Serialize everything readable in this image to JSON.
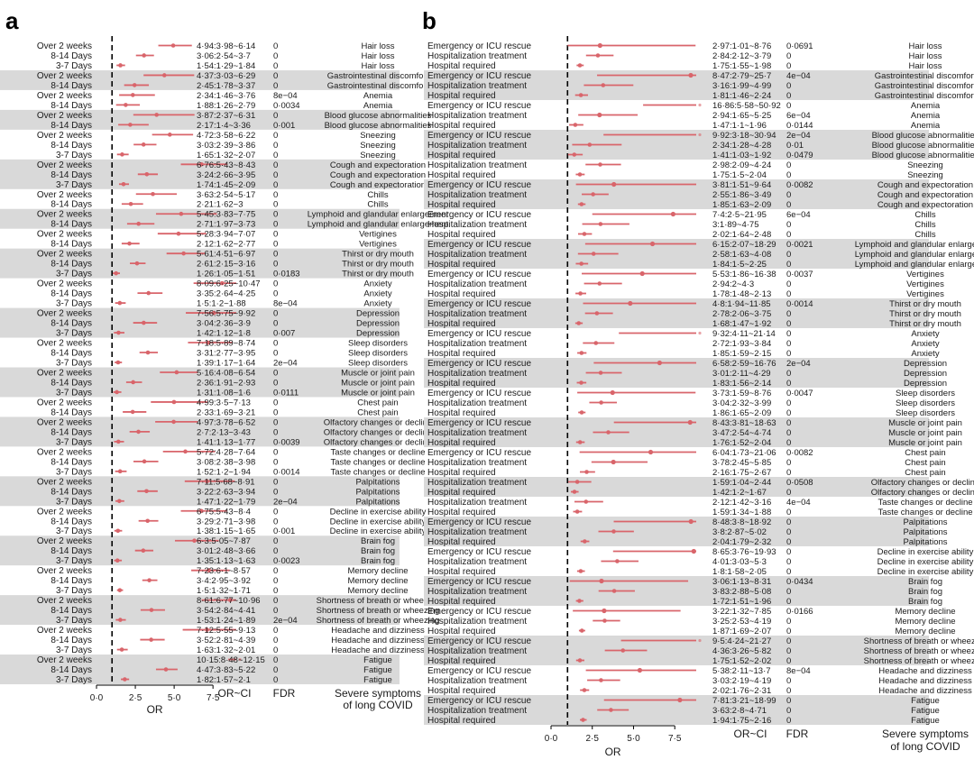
{
  "panel_letters": [
    "a",
    "b"
  ],
  "colors": {
    "point": "#d9656b",
    "band": "#d9d9d9",
    "axis": "#000000",
    "text": "#1a1a1a"
  },
  "chart_data": [
    {
      "panel": "a",
      "type": "forest",
      "xlabel": "OR",
      "xticks": [
        "0·0",
        "2·5",
        "5·0",
        "7·5"
      ],
      "xlim": [
        0,
        9
      ],
      "ref_line": 1,
      "column_headers": {
        "or_ci": "OR~CI",
        "fdr": "FDR",
        "symptom": [
          "Severe symptoms",
          "of long COVID"
        ]
      },
      "rows": [
        [
          "Over 2 weeks",
          "4·94:3·98~6·14",
          "0",
          "Hair loss"
        ],
        [
          "8-14 Days",
          "3·06:2·54~3·7",
          "0",
          "Hair loss"
        ],
        [
          "3-7 Days",
          "1·54:1·29~1·84",
          "0",
          "Hair loss"
        ],
        [
          "Over 2 weeks",
          "4·37:3·03~6·29",
          "0",
          "Gastrointestinal discomfort"
        ],
        [
          "8-14 Days",
          "2·45:1·78~3·37",
          "0",
          "Gastrointestinal discomfort"
        ],
        [
          "Over 2 weeks",
          "2·34:1·46~3·76",
          "8e−04",
          "Anemia"
        ],
        [
          "8-14 Days",
          "1·88:1·26~2·79",
          "0·0034",
          "Anemia"
        ],
        [
          "Over 2 weeks",
          "3·87:2·37~6·31",
          "0",
          "Blood glucose abnormalities"
        ],
        [
          "8-14 Days",
          "2·17:1·4~3·36",
          "0·001",
          "Blood glucose abnormalities"
        ],
        [
          "Over 2 weeks",
          "4·72:3·58~6·22",
          "0",
          "Sneezing"
        ],
        [
          "8-14 Days",
          "3·03:2·39~3·86",
          "0",
          "Sneezing"
        ],
        [
          "3-7 Days",
          "1·65:1·32~2·07",
          "0",
          "Sneezing"
        ],
        [
          "Over 2 weeks",
          "6·76:5·43~8·43",
          "0",
          "Cough and expectoration"
        ],
        [
          "8-14 Days",
          "3·24:2·66~3·95",
          "0",
          "Cough and expectoration"
        ],
        [
          "3-7 Days",
          "1·74:1·45~2·09",
          "0",
          "Cough and expectoration"
        ],
        [
          "Over 2 weeks",
          "3·63:2·54~5·17",
          "0",
          "Chills"
        ],
        [
          "8-14 Days",
          "2·21:1·62~3",
          "0",
          "Chills"
        ],
        [
          "Over 2 weeks",
          "5·45:3·83~7·75",
          "0",
          "Lymphoid and glandular enlargement"
        ],
        [
          "8-14 Days",
          "2·71:1·97~3·73",
          "0",
          "Lymphoid and glandular enlargement"
        ],
        [
          "Over 2 weeks",
          "5·28:3·94~7·07",
          "0",
          "Vertigines"
        ],
        [
          "8-14 Days",
          "2·12:1·62~2·77",
          "0",
          "Vertigines"
        ],
        [
          "Over 2 weeks",
          "5·61:4·51~6·97",
          "0",
          "Thirst or dry mouth"
        ],
        [
          "8-14 Days",
          "2·61:2·15~3·16",
          "0",
          "Thirst or dry mouth"
        ],
        [
          "3-7 Days",
          "1·26:1·05~1·51",
          "0·0183",
          "Thirst or dry mouth"
        ],
        [
          "Over 2 weeks",
          "8·09:6·25~10·47",
          "0",
          "Anxiety"
        ],
        [
          "8-14 Days",
          "3·35:2·64~4·25",
          "0",
          "Anxiety"
        ],
        [
          "3-7 Days",
          "1·5:1·2~1·88",
          "8e−04",
          "Anxiety"
        ],
        [
          "Over 2 weeks",
          "7·56:5·75~9·92",
          "0",
          "Depression"
        ],
        [
          "8-14 Days",
          "3·04:2·36~3·9",
          "0",
          "Depression"
        ],
        [
          "3-7 Days",
          "1·42:1·12~1·8",
          "0·007",
          "Depression"
        ],
        [
          "Over 2 weeks",
          "7·18:5·89~8·74",
          "0",
          "Sleep disorders"
        ],
        [
          "8-14 Days",
          "3·31:2·77~3·95",
          "0",
          "Sleep disorders"
        ],
        [
          "3-7 Days",
          "1·39:1·17~1·64",
          "2e−04",
          "Sleep disorders"
        ],
        [
          "Over 2 weeks",
          "5·16:4·08~6·54",
          "0",
          "Muscle or joint pain"
        ],
        [
          "8-14 Days",
          "2·36:1·91~2·93",
          "0",
          "Muscle or joint pain"
        ],
        [
          "3-7 Days",
          "1·31:1·08~1·6",
          "0·0111",
          "Muscle or joint pain"
        ],
        [
          "Over 2 weeks",
          "4·99:3·5~7·13",
          "0",
          "Chest pain"
        ],
        [
          "8-14 Days",
          "2·33:1·69~3·21",
          "0",
          "Chest pain"
        ],
        [
          "Over 2 weeks",
          "4·97:3·78~6·52",
          "0",
          "Olfactory changes or decline"
        ],
        [
          "8-14 Days",
          "2·7:2·13~3·43",
          "0",
          "Olfactory changes or decline"
        ],
        [
          "3-7 Days",
          "1·41:1·13~1·77",
          "0·0039",
          "Olfactory changes or decline"
        ],
        [
          "Over 2 weeks",
          "5·72:4·28~7·64",
          "0",
          "Taste changes or decline"
        ],
        [
          "8-14 Days",
          "3·08:2·38~3·98",
          "0",
          "Taste changes or decline"
        ],
        [
          "3-7 Days",
          "1·52:1·2~1·94",
          "0·0014",
          "Taste changes or decline"
        ],
        [
          "Over 2 weeks",
          "7·11:5·68~8·91",
          "0",
          "Palpitations"
        ],
        [
          "8-14 Days",
          "3·22:2·63~3·94",
          "0",
          "Palpitations"
        ],
        [
          "3-7 Days",
          "1·47:1·22~1·79",
          "2e−04",
          "Palpitations"
        ],
        [
          "Over 2 weeks",
          "6·75:5·43~8·4",
          "0",
          "Decline in exercise ability"
        ],
        [
          "8-14 Days",
          "3·29:2·71~3·98",
          "0",
          "Decline in exercise ability"
        ],
        [
          "3-7 Days",
          "1·38:1·15~1·65",
          "0·001",
          "Decline in exercise ability"
        ],
        [
          "Over 2 weeks",
          "6·3:5·05~7·87",
          "0",
          "Brain fog"
        ],
        [
          "8-14 Days",
          "3·01:2·48~3·66",
          "0",
          "Brain fog"
        ],
        [
          "3-7 Days",
          "1·35:1·13~1·63",
          "0·0023",
          "Brain fog"
        ],
        [
          "Over 2 weeks",
          "7·23:6·1~8·57",
          "0",
          "Memory decline"
        ],
        [
          "8-14 Days",
          "3·4:2·95~3·92",
          "0",
          "Memory decline"
        ],
        [
          "3-7 Days",
          "1·5:1·32~1·71",
          "0",
          "Memory decline"
        ],
        [
          "Over 2 weeks",
          "8·61:6·77~10·96",
          "0",
          "Shortness of breath or wheezing"
        ],
        [
          "8-14 Days",
          "3·54:2·84~4·41",
          "0",
          "Shortness of breath or wheezing"
        ],
        [
          "3-7 Days",
          "1·53:1·24~1·89",
          "2e−04",
          "Shortness of breath or wheezing"
        ],
        [
          "Over 2 weeks",
          "7·12:5·55~9·13",
          "0",
          "Headache and dizziness"
        ],
        [
          "8-14 Days",
          "3·52:2·81~4·39",
          "0",
          "Headache and dizziness"
        ],
        [
          "3-7 Days",
          "1·63:1·32~2·01",
          "0",
          "Headache and dizziness"
        ],
        [
          "Over 2 weeks",
          "10·15:8·48~12·15",
          "0",
          "Fatigue"
        ],
        [
          "8-14 Days",
          "4·47:3·83~5·22",
          "0",
          "Fatigue"
        ],
        [
          "3-7 Days",
          "1·82:1·57~2·1",
          "0",
          "Fatigue"
        ]
      ]
    },
    {
      "panel": "b",
      "type": "forest",
      "xlabel": "OR",
      "xticks": [
        "0·0",
        "2·5",
        "5·0",
        "7·5"
      ],
      "xlim": [
        0,
        8.8
      ],
      "ref_line": 1,
      "column_headers": {
        "or_ci": "OR~CI",
        "fdr": "FDR",
        "symptom": [
          "Severe symptoms",
          "of long COVID"
        ]
      },
      "rows": [
        [
          "Emergency or ICU rescue",
          "2·97:1·01~8·76",
          "0·0691",
          "Hair loss"
        ],
        [
          "Hospitalization treatment",
          "2·84:2·12~3·79",
          "0",
          "Hair loss"
        ],
        [
          "Hospital required",
          "1·75:1·55~1·98",
          "0",
          "Hair loss"
        ],
        [
          "Emergency or ICU rescue",
          "8·47:2·79~25·7",
          "4e−04",
          "Gastrointestinal discomfort"
        ],
        [
          "Hospitalization treatment",
          "3·16:1·99~4·99",
          "0",
          "Gastrointestinal discomfort"
        ],
        [
          "Hospital required",
          "1·81:1·46~2·24",
          "0",
          "Gastrointestinal discomfort"
        ],
        [
          "Emergency or ICU rescue",
          "16·86:5·58~50·92",
          "0",
          "Anemia"
        ],
        [
          "Hospitalization treatment",
          "2·94:1·65~5·25",
          "6e−04",
          "Anemia"
        ],
        [
          "Hospital required",
          "1·47:1·1~1·96",
          "0·0144",
          "Anemia"
        ],
        [
          "Emergency or ICU rescue",
          "9·92:3·18~30·94",
          "2e−04",
          "Blood glucose abnormalities"
        ],
        [
          "Hospitalization treatment",
          "2·34:1·28~4·28",
          "0·01",
          "Blood glucose abnormalities"
        ],
        [
          "Hospital required",
          "1·41:1·03~1·92",
          "0·0479",
          "Blood glucose abnormalities"
        ],
        [
          "Hospitalization treatment",
          "2·98:2·09~4·24",
          "0",
          "Sneezing"
        ],
        [
          "Hospital required",
          "1·75:1·5~2·04",
          "0",
          "Sneezing"
        ],
        [
          "Emergency or ICU rescue",
          "3·81:1·51~9·64",
          "0·0082",
          "Cough and expectoration"
        ],
        [
          "Hospitalization treatment",
          "2·55:1·86~3·49",
          "0",
          "Cough and expectoration"
        ],
        [
          "Hospital required",
          "1·85:1·63~2·09",
          "0",
          "Cough and expectoration"
        ],
        [
          "Emergency or ICU rescue",
          "7·4:2·5~21·95",
          "6e−04",
          "Chills"
        ],
        [
          "Hospitalization treatment",
          "3:1·89~4·75",
          "0",
          "Chills"
        ],
        [
          "Hospital required",
          "2·02:1·64~2·48",
          "0",
          "Chills"
        ],
        [
          "Emergency or ICU rescue",
          "6·15:2·07~18·29",
          "0·0021",
          "Lymphoid and glandular enlargement"
        ],
        [
          "Hospitalization treatment",
          "2·58:1·63~4·08",
          "0",
          "Lymphoid and glandular enlargement"
        ],
        [
          "Hospital required",
          "1·84:1·5~2·25",
          "0",
          "Lymphoid and glandular enlargement"
        ],
        [
          "Emergency or ICU rescue",
          "5·53:1·86~16·38",
          "0·0037",
          "Vertigines"
        ],
        [
          "Hospitalization treatment",
          "2·94:2~4·3",
          "0",
          "Vertigines"
        ],
        [
          "Hospital required",
          "1·78:1·48~2·13",
          "0",
          "Vertigines"
        ],
        [
          "Emergency or ICU rescue",
          "4·8:1·94~11·85",
          "0·0014",
          "Thirst or dry mouth"
        ],
        [
          "Hospitalization treatment",
          "2·78:2·06~3·75",
          "0",
          "Thirst or dry mouth"
        ],
        [
          "Hospital required",
          "1·68:1·47~1·92",
          "0",
          "Thirst or dry mouth"
        ],
        [
          "Emergency or ICU rescue",
          "9·32:4·11~21·14",
          "0",
          "Anxiety"
        ],
        [
          "Hospitalization treatment",
          "2·72:1·93~3·84",
          "0",
          "Anxiety"
        ],
        [
          "Hospital required",
          "1·85:1·59~2·15",
          "0",
          "Anxiety"
        ],
        [
          "Emergency or ICU rescue",
          "6·58:2·59~16·76",
          "2e−04",
          "Depression"
        ],
        [
          "Hospitalization treatment",
          "3·01:2·11~4·29",
          "0",
          "Depression"
        ],
        [
          "Hospital required",
          "1·83:1·56~2·14",
          "0",
          "Depression"
        ],
        [
          "Emergency or ICU rescue",
          "3·73:1·59~8·76",
          "0·0047",
          "Sleep disorders"
        ],
        [
          "Hospitalization treatment",
          "3·04:2·32~3·99",
          "0",
          "Sleep disorders"
        ],
        [
          "Hospital required",
          "1·86:1·65~2·09",
          "0",
          "Sleep disorders"
        ],
        [
          "Emergency or ICU rescue",
          "8·43:3·81~18·63",
          "0",
          "Muscle or joint pain"
        ],
        [
          "Hospitalization treatment",
          "3·47:2·54~4·74",
          "0",
          "Muscle or joint pain"
        ],
        [
          "Hospital required",
          "1·76:1·52~2·04",
          "0",
          "Muscle or joint pain"
        ],
        [
          "Emergency or ICU rescue",
          "6·04:1·73~21·06",
          "0·0082",
          "Chest pain"
        ],
        [
          "Hospitalization treatment",
          "3·78:2·45~5·85",
          "0",
          "Chest pain"
        ],
        [
          "Hospital required",
          "2·16:1·75~2·67",
          "0",
          "Chest pain"
        ],
        [
          "Hospitalization treatment",
          "1·59:1·04~2·44",
          "0·0508",
          "Olfactory changes or decline"
        ],
        [
          "Hospital required",
          "1·42:1·2~1·67",
          "0",
          "Olfactory changes or decline"
        ],
        [
          "Hospitalization treatment",
          "2·12:1·42~3·16",
          "4e−04",
          "Taste changes or decline"
        ],
        [
          "Hospital required",
          "1·59:1·34~1·88",
          "0",
          "Taste changes or decline"
        ],
        [
          "Emergency or ICU rescue",
          "8·48:3·8~18·92",
          "0",
          "Palpitations"
        ],
        [
          "Hospitalization treatment",
          "3·8:2·87~5·02",
          "0",
          "Palpitations"
        ],
        [
          "Hospital required",
          "2·04:1·79~2·32",
          "0",
          "Palpitations"
        ],
        [
          "Emergency or ICU rescue",
          "8·65:3·76~19·93",
          "0",
          "Decline in exercise ability"
        ],
        [
          "Hospitalization treatment",
          "4·01:3·03~5·3",
          "0",
          "Decline in exercise ability"
        ],
        [
          "Hospital required",
          "1·8:1·58~2·05",
          "0",
          "Decline in exercise ability"
        ],
        [
          "Emergency or ICU rescue",
          "3·06:1·13~8·31",
          "0·0434",
          "Brain fog"
        ],
        [
          "Hospitalization treatment",
          "3·83:2·88~5·08",
          "0",
          "Brain fog"
        ],
        [
          "Hospital required",
          "1·72:1·51~1·96",
          "0",
          "Brain fog"
        ],
        [
          "Emergency or ICU rescue",
          "3·22:1·32~7·85",
          "0·0166",
          "Memory decline"
        ],
        [
          "Hospitalization treatment",
          "3·25:2·53~4·19",
          "0",
          "Memory decline"
        ],
        [
          "Hospital required",
          "1·87:1·69~2·07",
          "0",
          "Memory decline"
        ],
        [
          "Emergency or ICU rescue",
          "9·5:4·24~21·27",
          "0",
          "Shortness of breath or wheezing"
        ],
        [
          "Hospitalization treatment",
          "4·36:3·26~5·82",
          "0",
          "Shortness of breath or wheezing"
        ],
        [
          "Hospital required",
          "1·75:1·52~2·02",
          "0",
          "Shortness of breath or wheezing"
        ],
        [
          "Emergency or ICU rescue",
          "5·38:2·11~13·7",
          "8e−04",
          "Headache and dizziness"
        ],
        [
          "Hospitalization treatment",
          "3·03:2·19~4·19",
          "0",
          "Headache and dizziness"
        ],
        [
          "Hospital required",
          "2·02:1·76~2·31",
          "0",
          "Headache and dizziness"
        ],
        [
          "Emergency or ICU rescue",
          "7·81:3·21~18·99",
          "0",
          "Fatigue"
        ],
        [
          "Hospitalization treatment",
          "3·63:2·8~4·71",
          "0",
          "Fatigue"
        ],
        [
          "Hospital required",
          "1·94:1·75~2·16",
          "0",
          "Fatigue"
        ]
      ]
    }
  ]
}
